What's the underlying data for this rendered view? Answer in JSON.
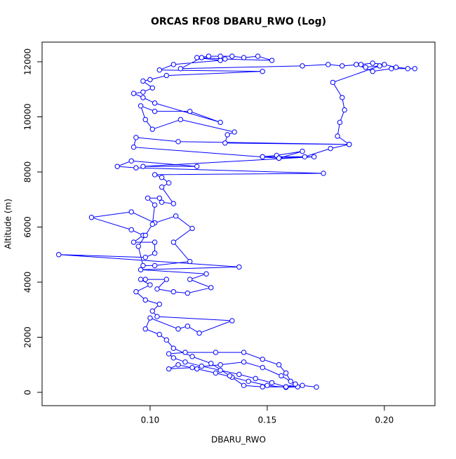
{
  "chart_data": {
    "type": "line",
    "title": "ORCAS RF08 DBARU_RWO (Log)",
    "x_label": "DBARU_RWO",
    "y_label": "Altitude (m)",
    "color": "#0000ff",
    "marker": "circle",
    "xlim": [
      0.0539,
      0.2216
    ],
    "ylim": [
      -484,
      12713
    ],
    "xticks": [
      {
        "value": 0.1,
        "label": "0.10"
      },
      {
        "value": 0.15,
        "label": "0.15"
      },
      {
        "value": 0.2,
        "label": "0.20"
      }
    ],
    "yticks": [
      0,
      2000,
      4000,
      6000,
      8000,
      10000,
      12000
    ],
    "x": [
      0.171,
      0.165,
      0.158,
      0.152,
      0.145,
      0.138,
      0.13,
      0.122,
      0.115,
      0.11,
      0.108,
      0.115,
      0.128,
      0.14,
      0.148,
      0.155,
      0.158,
      0.16,
      0.163,
      0.158,
      0.15,
      0.142,
      0.135,
      0.128,
      0.12,
      0.112,
      0.108,
      0.118,
      0.13,
      0.14,
      0.148,
      0.156,
      0.162,
      0.158,
      0.148,
      0.14,
      0.134,
      0.126,
      0.118,
      0.11,
      0.107,
      0.104,
      0.098,
      0.1,
      0.112,
      0.116,
      0.121,
      0.135,
      0.103,
      0.101,
      0.104,
      0.098,
      0.094,
      0.1,
      0.096,
      0.098,
      0.107,
      0.103,
      0.11,
      0.116,
      0.126,
      0.117,
      0.124,
      0.096,
      0.138,
      0.061,
      0.098,
      0.102,
      0.102,
      0.093,
      0.097,
      0.092,
      0.075,
      0.092,
      0.102,
      0.111,
      0.118,
      0.11,
      0.117,
      0.102,
      0.097,
      0.095,
      0.098,
      0.101,
      0.102,
      0.099,
      0.104,
      0.105,
      0.11,
      0.105,
      0.108,
      0.105,
      0.102,
      0.174,
      0.094,
      0.086,
      0.092,
      0.12,
      0.097,
      0.17,
      0.148,
      0.154,
      0.165,
      0.155,
      0.093,
      0.094,
      0.112,
      0.185,
      0.132,
      0.133,
      0.136,
      0.113,
      0.101,
      0.098,
      0.096,
      0.102,
      0.117,
      0.13,
      0.102,
      0.097,
      0.093,
      0.097,
      0.101,
      0.097,
      0.1,
      0.107,
      0.148,
      0.104,
      0.11,
      0.13,
      0.12,
      0.125,
      0.13,
      0.135,
      0.14,
      0.146,
      0.152,
      0.132,
      0.122,
      0.113,
      0.165,
      0.176,
      0.182,
      0.19,
      0.195,
      0.2,
      0.205,
      0.21,
      0.213,
      0.203,
      0.195,
      0.188,
      0.192,
      0.198,
      0.178,
      0.182,
      0.183,
      0.181,
      0.18,
      0.185,
      0.177,
      0.166,
      0.155,
      0.148
    ],
    "values": [
      190,
      250,
      200,
      350,
      500,
      650,
      800,
      950,
      1100,
      1250,
      1400,
      1450,
      1450,
      1450,
      1200,
      1000,
      700,
      400,
      200,
      180,
      250,
      400,
      550,
      700,
      850,
      1000,
      850,
      900,
      1000,
      1100,
      900,
      600,
      300,
      200,
      200,
      250,
      600,
      1050,
      1300,
      1600,
      1900,
      2100,
      2300,
      2700,
      2300,
      2400,
      2150,
      2600,
      2750,
      2950,
      3200,
      3350,
      3650,
      3900,
      4100,
      4100,
      4100,
      3750,
      3650,
      3600,
      3800,
      4100,
      4300,
      4450,
      4550,
      5000,
      4900,
      5050,
      5450,
      5450,
      5700,
      5900,
      6350,
      6550,
      6150,
      6400,
      5950,
      5450,
      4750,
      4600,
      4600,
      5300,
      5700,
      6100,
      6800,
      7050,
      7050,
      6900,
      6850,
      7450,
      7600,
      7800,
      7900,
      7950,
      8150,
      8200,
      8400,
      8200,
      8200,
      8550,
      8550,
      8600,
      8750,
      8500,
      8900,
      9250,
      9100,
      9000,
      9050,
      9350,
      9450,
      9900,
      9550,
      9900,
      10400,
      10200,
      10200,
      9800,
      10500,
      10700,
      10850,
      10900,
      11050,
      11300,
      11350,
      11500,
      11650,
      11700,
      11900,
      12050,
      12150,
      12200,
      12200,
      12200,
      12150,
      12200,
      12050,
      12100,
      12150,
      11750,
      11850,
      11900,
      11850,
      11900,
      11950,
      11900,
      11800,
      11750,
      11750,
      11750,
      11650,
      11900,
      11800,
      11850,
      11250,
      10700,
      10250,
      9800,
      9300,
      9000,
      8850,
      8550,
      8500,
      8550
    ]
  }
}
